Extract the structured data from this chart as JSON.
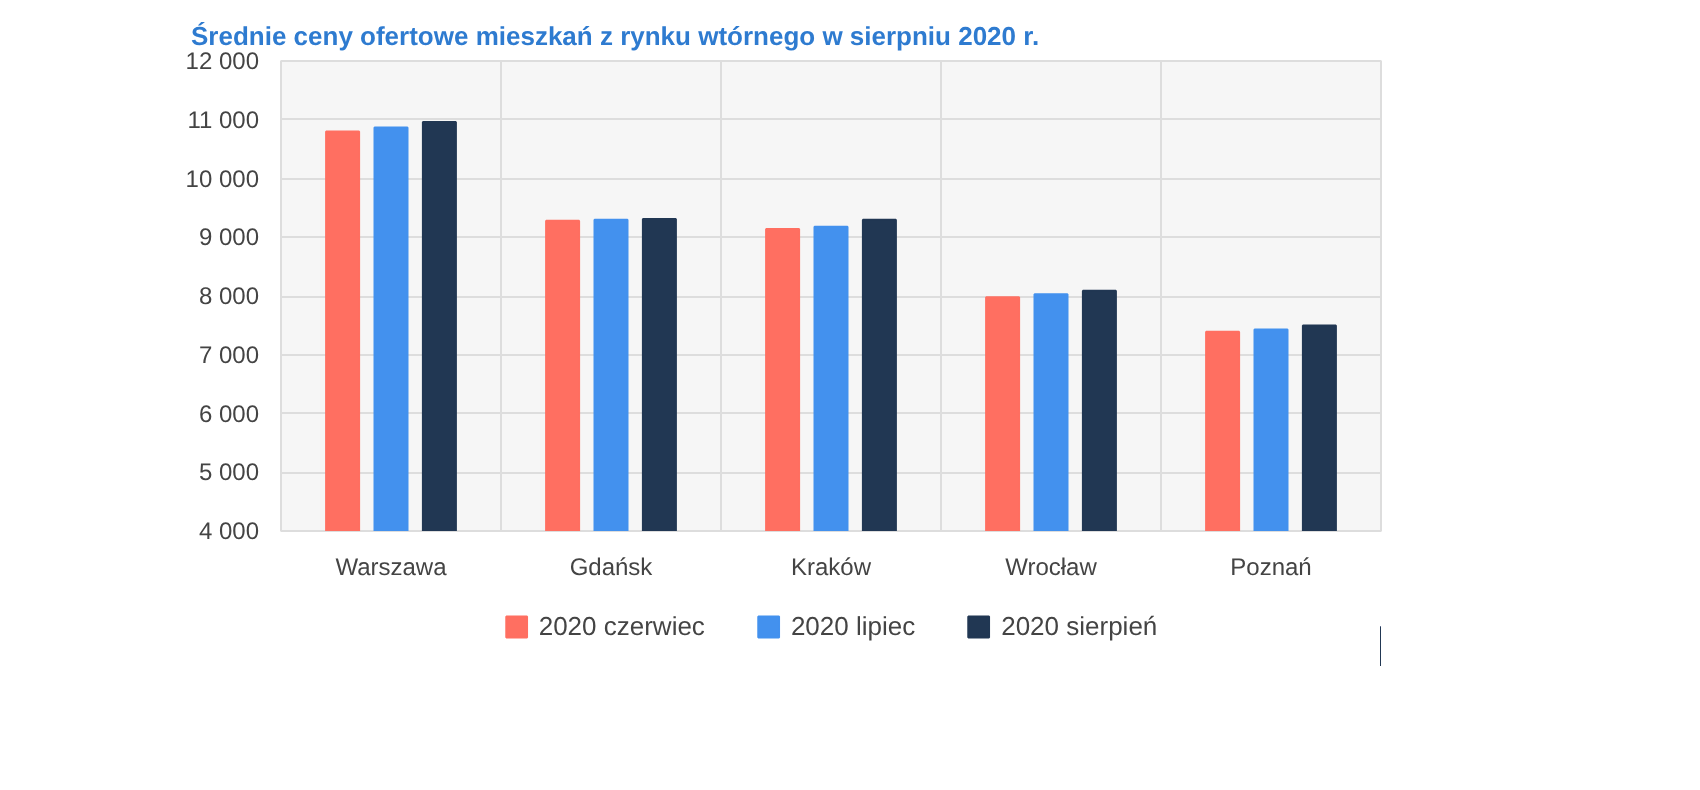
{
  "chart_data": {
    "type": "bar",
    "title": "Średnie ceny ofertowe mieszkań z rynku wtórnego w sierpniu 2020 r.",
    "categories": [
      "Warszawa",
      "Gdańsk",
      "Kraków",
      "Wrocław",
      "Poznań"
    ],
    "series": [
      {
        "name": "2020 czerwiec",
        "color": "#ff6f61",
        "values": [
          10800,
          9280,
          9140,
          7980,
          7390
        ]
      },
      {
        "name": "2020 lipiec",
        "color": "#4391ee",
        "values": [
          10870,
          9300,
          9180,
          8030,
          7430
        ]
      },
      {
        "name": "2020 sierpień",
        "color": "#213753",
        "values": [
          10960,
          9310,
          9300,
          8090,
          7500
        ]
      }
    ],
    "ylim": [
      4000,
      12000
    ],
    "yticks": [
      {
        "value": 4000,
        "label": "4 000"
      },
      {
        "value": 5000,
        "label": "5 000"
      },
      {
        "value": 6000,
        "label": "6 000"
      },
      {
        "value": 7000,
        "label": "7 000"
      },
      {
        "value": 8000,
        "label": "8 000"
      },
      {
        "value": 9000,
        "label": "9 000"
      },
      {
        "value": 10000,
        "label": "10 000"
      },
      {
        "value": 11000,
        "label": "11 000"
      },
      {
        "value": 12000,
        "label": "12 000"
      }
    ],
    "grid": true,
    "legend": "bottom"
  }
}
